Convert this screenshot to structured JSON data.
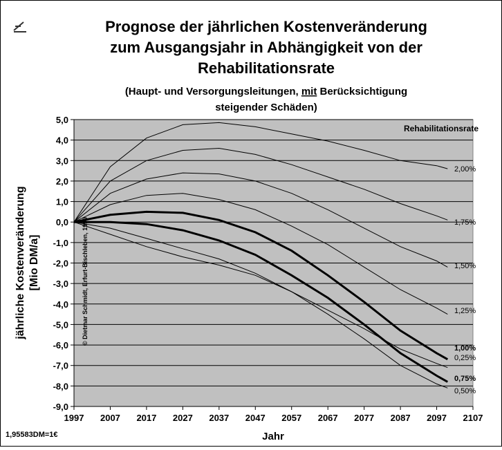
{
  "chart_data": {
    "type": "line",
    "title_lines": [
      "Prognose der jährlichen Kostenveränderung",
      "zum Ausgangsjahr in Abhängigkeit von der",
      "Rehabilitationsrate"
    ],
    "subtitle": {
      "before": "(Haupt- und Versorgungsleitungen, ",
      "emphasis": "mit",
      "after": " Berücksichtigung",
      "second_line": "steigender Schäden)"
    },
    "y_label_lines": [
      "jährliche Kostenveränderung",
      "[Mio DM/a]"
    ],
    "x_label": "Jahr",
    "legend_title": "Rehabilitationsrate",
    "footnote": "1,95583DM=1€",
    "copyright": "© Dietmar Schmidt, Erfurt-Bischleben, 1999",
    "x": [
      1997,
      2007,
      2017,
      2027,
      2037,
      2047,
      2057,
      2067,
      2077,
      2087,
      2097,
      2100
    ],
    "xlim": [
      1997,
      2107
    ],
    "xticks": [
      1997,
      2007,
      2017,
      2027,
      2037,
      2047,
      2057,
      2067,
      2077,
      2087,
      2097,
      2107
    ],
    "ylim": [
      -9,
      5
    ],
    "yticks": [
      {
        "value": 5,
        "label": "5,0"
      },
      {
        "value": 4,
        "label": "4,0"
      },
      {
        "value": 3,
        "label": "3,0"
      },
      {
        "value": 2,
        "label": "2,0"
      },
      {
        "value": 1,
        "label": "1,0"
      },
      {
        "value": 0,
        "label": "0,0"
      },
      {
        "value": -1,
        "label": "-1,0"
      },
      {
        "value": -2,
        "label": "-2,0"
      },
      {
        "value": -3,
        "label": "-3,0"
      },
      {
        "value": -4,
        "label": "-4,0"
      },
      {
        "value": -5,
        "label": "-5,0"
      },
      {
        "value": -6,
        "label": "-6,0"
      },
      {
        "value": -7,
        "label": "-7,0"
      },
      {
        "value": -8,
        "label": "-8,0"
      },
      {
        "value": -9,
        "label": "-9,0"
      }
    ],
    "grid": true,
    "series": [
      {
        "name": "2,00%",
        "color": "#000000",
        "bold": false,
        "values": [
          0,
          2.7,
          4.1,
          4.75,
          4.85,
          4.65,
          4.3,
          3.95,
          3.5,
          3.0,
          2.75,
          2.6
        ]
      },
      {
        "name": "1,75%",
        "color": "#000000",
        "bold": false,
        "values": [
          0,
          2.0,
          3.0,
          3.5,
          3.6,
          3.3,
          2.8,
          2.2,
          1.6,
          0.9,
          0.3,
          0.1
        ]
      },
      {
        "name": "1,50%",
        "color": "#000000",
        "bold": false,
        "values": [
          0,
          1.4,
          2.1,
          2.4,
          2.35,
          2.0,
          1.4,
          0.6,
          -0.3,
          -1.2,
          -1.9,
          -2.2
        ]
      },
      {
        "name": "1,25%",
        "color": "#000000",
        "bold": false,
        "values": [
          0,
          0.85,
          1.3,
          1.4,
          1.1,
          0.6,
          -0.2,
          -1.1,
          -2.2,
          -3.3,
          -4.2,
          -4.5
        ]
      },
      {
        "name": "1,00%",
        "color": "#000000",
        "bold": true,
        "values": [
          0,
          0.35,
          0.5,
          0.45,
          0.1,
          -0.5,
          -1.4,
          -2.6,
          -3.9,
          -5.3,
          -6.4,
          -6.7
        ]
      },
      {
        "name": "0,25%",
        "color": "#000000",
        "bold": false,
        "values": [
          0,
          -0.3,
          -0.8,
          -1.3,
          -1.8,
          -2.5,
          -3.4,
          -4.3,
          -5.2,
          -6.2,
          -6.9,
          -7.1
        ]
      },
      {
        "name": "0,75%",
        "color": "#000000",
        "bold": true,
        "values": [
          0,
          0,
          -0.1,
          -0.4,
          -0.9,
          -1.6,
          -2.6,
          -3.7,
          -5.0,
          -6.4,
          -7.5,
          -7.8
        ]
      },
      {
        "name": "0,50%",
        "color": "#000000",
        "bold": false,
        "values": [
          0,
          -0.6,
          -1.2,
          -1.7,
          -2.1,
          -2.6,
          -3.4,
          -4.5,
          -5.7,
          -7.0,
          -7.9,
          -8.1
        ]
      }
    ]
  }
}
